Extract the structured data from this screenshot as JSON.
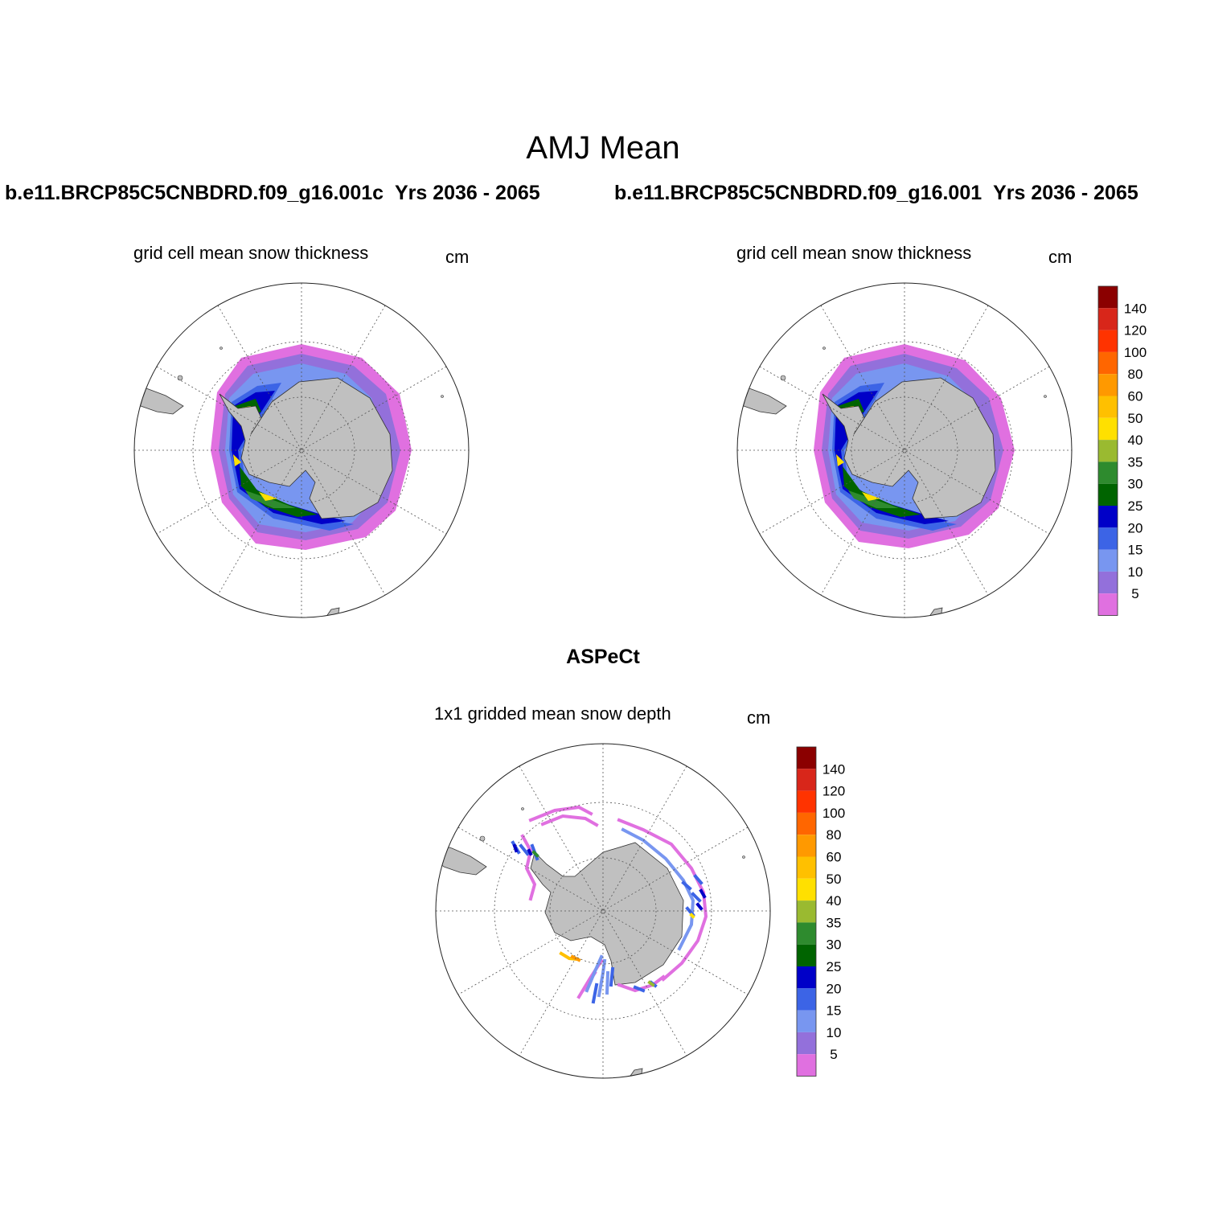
{
  "title": "AMJ Mean",
  "cases": [
    {
      "name": "b.e11.BRCP85C5CNBDRD.f09_g16.001c",
      "years": "Yrs 2036 - 2065"
    },
    {
      "name": "b.e11.BRCP85C5CNBDRD.f09_g16.001",
      "years": "Yrs 2036 - 2065"
    }
  ],
  "panels": [
    {
      "title": "grid cell mean snow thickness",
      "units": "cm"
    },
    {
      "title": "grid cell mean snow thickness",
      "units": "cm"
    },
    {
      "title": "1x1 gridded mean snow depth",
      "units": "cm"
    }
  ],
  "observation_title": "ASPeCt",
  "colorbar": {
    "labels": [
      "140",
      "120",
      "100",
      "80",
      "60",
      "50",
      "40",
      "35",
      "30",
      "25",
      "20",
      "15",
      "10",
      "5"
    ],
    "colors": [
      "#8b0000",
      "#d8261a",
      "#ff3300",
      "#ff6600",
      "#ff9900",
      "#ffc000",
      "#ffe000",
      "#9aba30",
      "#2e8b2e",
      "#006400",
      "#0000c8",
      "#3c64e6",
      "#7896f0",
      "#9370db",
      "#e070e0"
    ]
  },
  "map": {
    "projection": "south-polar-stereographic",
    "land_color": "#c0c0c0",
    "grid_color": "#555555"
  }
}
